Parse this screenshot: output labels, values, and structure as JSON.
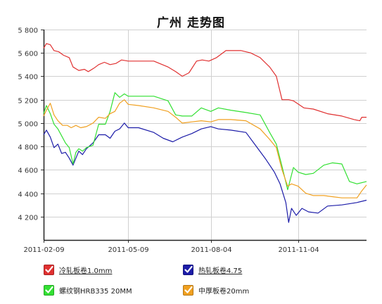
{
  "chart_data": {
    "type": "line",
    "title": "广州 走势图",
    "xlabel": "",
    "ylabel": "",
    "ylim": [
      4000,
      5800
    ],
    "y_ticks": [
      "4 200",
      "4 400",
      "4 600",
      "4 800",
      "5 000",
      "5 200",
      "5 400",
      "5 600",
      "5 800"
    ],
    "y_tick_values": [
      4200,
      4400,
      4600,
      4800,
      5000,
      5200,
      5400,
      5600,
      5800
    ],
    "x_ticks": [
      "2011-02-09",
      "2011-05-09",
      "2011-08-04",
      "2011-11-04"
    ],
    "x_tick_values": [
      "2011-02-09",
      "2011-05-09",
      "2011-08-04",
      "2011-11-04"
    ],
    "x_range": [
      "2011-02-09",
      "2012-01-15"
    ],
    "grid": true,
    "legend_position": "bottom",
    "series": [
      {
        "name": "冷轧板卷1.0mm",
        "color": "#e03030",
        "underline": true,
        "x": [
          "2011-02-09",
          "2011-02-12",
          "2011-02-16",
          "2011-02-20",
          "2011-02-25",
          "2011-03-02",
          "2011-03-08",
          "2011-03-12",
          "2011-03-18",
          "2011-03-24",
          "2011-03-28",
          "2011-04-03",
          "2011-04-08",
          "2011-04-14",
          "2011-04-20",
          "2011-04-26",
          "2011-05-02",
          "2011-05-09",
          "2011-05-20",
          "2011-06-05",
          "2011-06-20",
          "2011-06-28",
          "2011-07-05",
          "2011-07-12",
          "2011-07-20",
          "2011-07-26",
          "2011-08-02",
          "2011-08-10",
          "2011-08-20",
          "2011-09-05",
          "2011-09-15",
          "2011-09-25",
          "2011-10-05",
          "2011-10-12",
          "2011-10-18",
          "2011-10-25",
          "2011-10-30",
          "2011-11-10",
          "2011-11-20",
          "2011-12-05",
          "2011-12-20",
          "2012-01-02",
          "2012-01-08",
          "2012-01-10",
          "2012-01-15"
        ],
        "values": [
          5640,
          5680,
          5670,
          5620,
          5610,
          5580,
          5560,
          5480,
          5450,
          5460,
          5440,
          5470,
          5500,
          5520,
          5500,
          5510,
          5540,
          5530,
          5530,
          5530,
          5480,
          5440,
          5400,
          5430,
          5530,
          5540,
          5530,
          5560,
          5620,
          5620,
          5600,
          5560,
          5480,
          5400,
          5200,
          5200,
          5190,
          5130,
          5120,
          5080,
          5060,
          5030,
          5020,
          5050,
          5050
        ]
      },
      {
        "name": "热轧板卷4.75",
        "color": "#1c1ca8",
        "underline": true,
        "x": [
          "2011-02-09",
          "2011-02-12",
          "2011-02-16",
          "2011-02-20",
          "2011-02-24",
          "2011-02-28",
          "2011-03-04",
          "2011-03-08",
          "2011-03-12",
          "2011-03-15",
          "2011-03-18",
          "2011-03-22",
          "2011-03-26",
          "2011-04-02",
          "2011-04-08",
          "2011-04-15",
          "2011-04-20",
          "2011-04-25",
          "2011-04-30",
          "2011-05-05",
          "2011-05-09",
          "2011-05-20",
          "2011-06-05",
          "2011-06-15",
          "2011-06-25",
          "2011-07-05",
          "2011-07-15",
          "2011-07-25",
          "2011-08-04",
          "2011-08-12",
          "2011-08-25",
          "2011-09-10",
          "2011-09-20",
          "2011-10-01",
          "2011-10-10",
          "2011-10-16",
          "2011-10-22",
          "2011-10-25",
          "2011-10-28",
          "2011-11-02",
          "2011-11-08",
          "2011-11-15",
          "2011-11-25",
          "2011-12-05",
          "2011-12-20",
          "2012-01-05",
          "2012-01-15"
        ],
        "values": [
          4900,
          4940,
          4880,
          4790,
          4820,
          4740,
          4750,
          4700,
          4640,
          4700,
          4760,
          4730,
          4780,
          4830,
          4900,
          4900,
          4870,
          4930,
          4950,
          5000,
          4960,
          4960,
          4920,
          4870,
          4840,
          4880,
          4910,
          4950,
          4970,
          4950,
          4940,
          4920,
          4810,
          4690,
          4580,
          4480,
          4320,
          4150,
          4270,
          4210,
          4270,
          4240,
          4230,
          4290,
          4300,
          4320,
          4340
        ]
      },
      {
        "name": "螺纹钢HRB335 20MM",
        "color": "#33e033",
        "underline": false,
        "x": [
          "2011-02-09",
          "2011-02-12",
          "2011-02-16",
          "2011-02-20",
          "2011-02-24",
          "2011-02-28",
          "2011-03-04",
          "2011-03-08",
          "2011-03-12",
          "2011-03-15",
          "2011-03-18",
          "2011-03-22",
          "2011-03-26",
          "2011-04-02",
          "2011-04-08",
          "2011-04-15",
          "2011-04-20",
          "2011-04-25",
          "2011-04-30",
          "2011-05-05",
          "2011-05-09",
          "2011-05-20",
          "2011-06-05",
          "2011-06-20",
          "2011-06-28",
          "2011-07-05",
          "2011-07-15",
          "2011-07-25",
          "2011-08-04",
          "2011-08-12",
          "2011-08-25",
          "2011-09-10",
          "2011-09-25",
          "2011-10-05",
          "2011-10-12",
          "2011-10-18",
          "2011-10-24",
          "2011-10-30",
          "2011-11-04",
          "2011-11-12",
          "2011-11-20",
          "2011-12-01",
          "2011-12-10",
          "2011-12-20",
          "2011-12-28",
          "2012-01-05",
          "2012-01-15"
        ],
        "values": [
          5080,
          5150,
          5080,
          4990,
          4950,
          4890,
          4830,
          4790,
          4650,
          4750,
          4780,
          4760,
          4790,
          4810,
          4990,
          4990,
          5100,
          5260,
          5220,
          5250,
          5230,
          5230,
          5230,
          5190,
          5070,
          5060,
          5060,
          5130,
          5100,
          5130,
          5110,
          5090,
          5070,
          4920,
          4820,
          4630,
          4430,
          4620,
          4580,
          4560,
          4570,
          4640,
          4660,
          4650,
          4500,
          4480,
          4500
        ]
      },
      {
        "name": "中厚板卷20mm",
        "color": "#f0a020",
        "underline": false,
        "x": [
          "2011-02-09",
          "2011-02-12",
          "2011-02-16",
          "2011-02-20",
          "2011-02-24",
          "2011-03-01",
          "2011-03-06",
          "2011-03-10",
          "2011-03-15",
          "2011-03-20",
          "2011-03-26",
          "2011-04-02",
          "2011-04-08",
          "2011-04-15",
          "2011-04-20",
          "2011-04-25",
          "2011-04-30",
          "2011-05-05",
          "2011-05-09",
          "2011-05-20",
          "2011-06-05",
          "2011-06-20",
          "2011-06-28",
          "2011-07-05",
          "2011-07-15",
          "2011-07-25",
          "2011-08-04",
          "2011-08-12",
          "2011-08-25",
          "2011-09-10",
          "2011-09-25",
          "2011-10-05",
          "2011-10-12",
          "2011-10-18",
          "2011-10-24",
          "2011-10-28",
          "2011-11-04",
          "2011-11-12",
          "2011-11-20",
          "2011-12-01",
          "2011-12-10",
          "2011-12-20",
          "2012-01-05",
          "2012-01-10",
          "2012-01-15"
        ],
        "values": [
          5060,
          5110,
          5170,
          5070,
          5020,
          4980,
          4980,
          4960,
          4980,
          4960,
          4970,
          5000,
          5050,
          5040,
          5080,
          5100,
          5170,
          5200,
          5160,
          5150,
          5130,
          5100,
          5050,
          5000,
          5010,
          5020,
          5010,
          5030,
          5030,
          5020,
          4950,
          4860,
          4790,
          4600,
          4460,
          4480,
          4460,
          4400,
          4380,
          4380,
          4370,
          4360,
          4360,
          4420,
          4470
        ]
      }
    ]
  }
}
